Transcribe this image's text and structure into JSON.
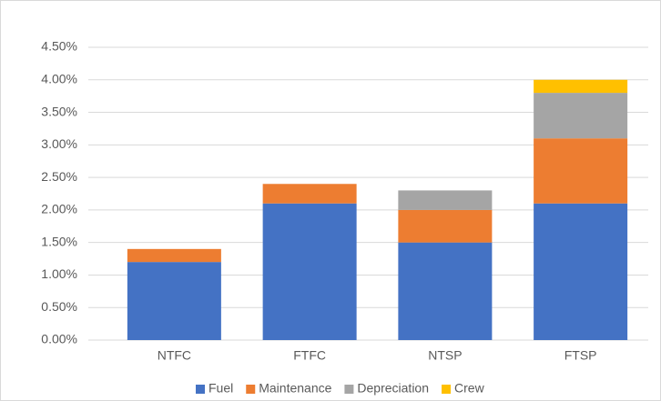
{
  "chart_data": {
    "type": "stacked_bar",
    "categories": [
      "NTFC",
      "FTFC",
      "NTSP",
      "FTSP"
    ],
    "series": [
      {
        "name": "Fuel",
        "color": "#4472c4",
        "values": [
          1.2,
          2.1,
          1.5,
          2.1
        ]
      },
      {
        "name": "Maintenance",
        "color": "#ed7d31",
        "values": [
          0.2,
          0.3,
          0.5,
          1.0
        ]
      },
      {
        "name": "Depreciation",
        "color": "#a5a5a5",
        "values": [
          0,
          0,
          0.3,
          0.7
        ]
      },
      {
        "name": "Crew",
        "color": "#ffc000",
        "values": [
          0,
          0,
          0,
          0.2
        ]
      }
    ],
    "ylim": [
      0,
      4.5
    ],
    "yticks": [
      {
        "value": 0,
        "label": "0.00%"
      },
      {
        "value": 0.5,
        "label": "0.50%"
      },
      {
        "value": 1,
        "label": "1.00%"
      },
      {
        "value": 1.5,
        "label": "1.50%"
      },
      {
        "value": 2,
        "label": "2.00%"
      },
      {
        "value": 2.5,
        "label": "2.50%"
      },
      {
        "value": 3,
        "label": "3.00%"
      },
      {
        "value": 3.5,
        "label": "3.50%"
      },
      {
        "value": 4,
        "label": "4.00%"
      },
      {
        "value": 4.5,
        "label": "4.50%"
      }
    ],
    "grid": true,
    "legend": "bottom"
  }
}
